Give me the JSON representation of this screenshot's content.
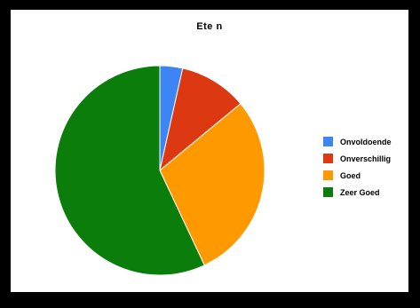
{
  "chart_data": {
    "type": "pie",
    "title": "Ete n",
    "categories": [
      "Onvoldoende",
      "Onverschillig",
      "Goed",
      "Zeer Goed"
    ],
    "values": [
      3.5,
      10.5,
      29,
      57
    ],
    "colors": [
      "#3d85f4",
      "#dc3912",
      "#ff9900",
      "#0a7d0a"
    ],
    "legend_position": "right",
    "start_angle": "top",
    "direction": "clockwise"
  }
}
